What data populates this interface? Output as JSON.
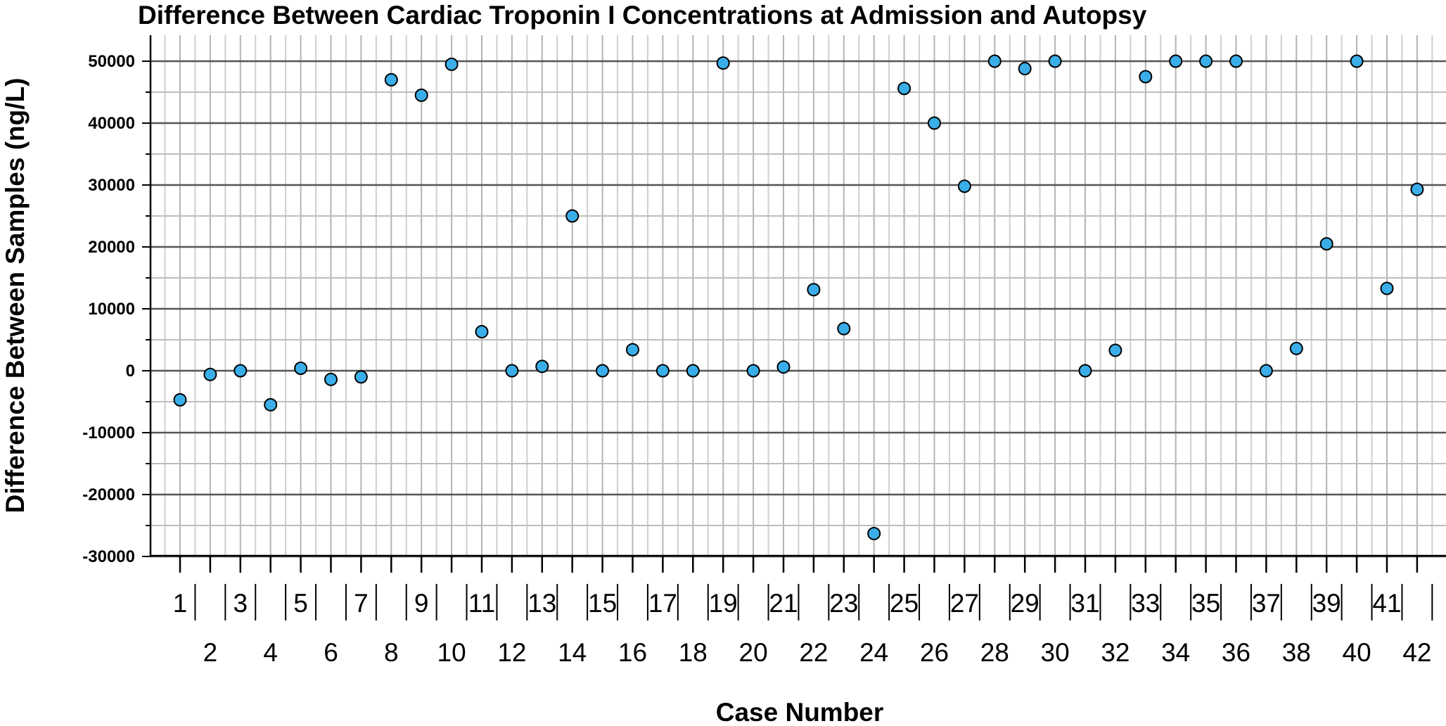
{
  "chart_data": {
    "type": "scatter",
    "title": "Difference Between Cardiac Troponin I Concentrations at Admission and Autopsy",
    "xlabel": "Case Number",
    "ylabel": "Difference Between Samples (ng/L)",
    "x": [
      1,
      2,
      3,
      4,
      5,
      6,
      7,
      8,
      9,
      10,
      11,
      12,
      13,
      14,
      15,
      16,
      17,
      18,
      19,
      20,
      21,
      22,
      23,
      24,
      25,
      26,
      27,
      28,
      29,
      30,
      31,
      32,
      33,
      34,
      35,
      36,
      37,
      38,
      39,
      40,
      41,
      42
    ],
    "y": [
      -4700,
      -600,
      0,
      -5500,
      400,
      -1400,
      -1000,
      47000,
      44500,
      49500,
      6300,
      0,
      700,
      25000,
      0,
      3400,
      0,
      0,
      49700,
      0,
      600,
      13100,
      6800,
      -26300,
      45600,
      40000,
      29800,
      50000,
      48800,
      50000,
      0,
      3300,
      47500,
      50000,
      50000,
      50000,
      0,
      3600,
      20500,
      50000,
      13300,
      29300
    ],
    "ylim": [
      -30000,
      55000
    ],
    "yticks": [
      "50000",
      "40000",
      "30000",
      "20000",
      "10000",
      "0",
      "-10000",
      "-20000",
      "-30000"
    ],
    "ytick_values": [
      50000,
      40000,
      30000,
      20000,
      10000,
      0,
      -10000,
      -20000,
      -30000
    ],
    "xticks": [
      "1",
      "2",
      "3",
      "4",
      "5",
      "6",
      "7",
      "8",
      "9",
      "10",
      "11",
      "12",
      "13",
      "14",
      "15",
      "16",
      "17",
      "18",
      "19",
      "20",
      "21",
      "22",
      "23",
      "24",
      "25",
      "26",
      "27",
      "28",
      "29",
      "30",
      "31",
      "32",
      "33",
      "34",
      "35",
      "36",
      "37",
      "38",
      "39",
      "40",
      "41",
      "42"
    ],
    "grid": true,
    "marker_color": "#3aaee8",
    "marker_edge_color": "#000000"
  }
}
